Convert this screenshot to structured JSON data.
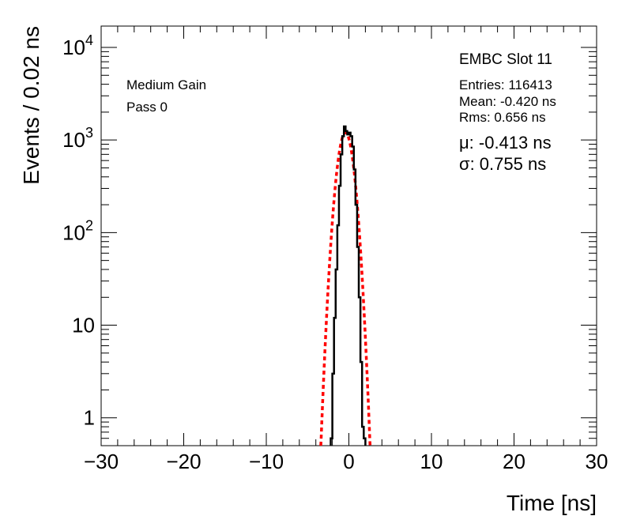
{
  "chart_data": {
    "type": "histogram",
    "xlabel": "Time [ns]",
    "ylabel": "Events / 0.02 ns",
    "xlim": [
      -30,
      30
    ],
    "ylim": [
      0.5,
      17000
    ],
    "y_scale": "log",
    "x_ticks": [
      {
        "value": -30,
        "label": "−30"
      },
      {
        "value": -20,
        "label": "−20"
      },
      {
        "value": -10,
        "label": "−10"
      },
      {
        "value": 0,
        "label": "0"
      },
      {
        "value": 10,
        "label": "10"
      },
      {
        "value": 20,
        "label": "20"
      },
      {
        "value": 30,
        "label": "30"
      }
    ],
    "y_ticks": [
      {
        "value": 1,
        "base": "1",
        "exp": ""
      },
      {
        "value": 10,
        "base": "10",
        "exp": ""
      },
      {
        "value": 100,
        "base": "10",
        "exp": "2"
      },
      {
        "value": 1000,
        "base": "10",
        "exp": "3"
      },
      {
        "value": 10000,
        "base": "10",
        "exp": "4"
      }
    ],
    "histogram": {
      "color": "#000000",
      "x": [
        -2.1,
        -1.9,
        -1.7,
        -1.5,
        -1.3,
        -1.1,
        -0.9,
        -0.7,
        -0.5,
        -0.3,
        -0.1,
        0.1,
        0.3,
        0.5,
        0.7,
        0.9,
        1.1,
        1.3,
        1.5,
        1.7,
        1.9
      ],
      "y": [
        0.6,
        3,
        12,
        40,
        120,
        320,
        700,
        1100,
        1400,
        1250,
        1150,
        1200,
        1100,
        850,
        480,
        200,
        70,
        20,
        4,
        0.8,
        0.6
      ]
    },
    "fit": {
      "type": "gaussian",
      "color": "#ff0000",
      "style": "dashed",
      "mu": -0.413,
      "sigma": 0.755,
      "amplitude": 1200,
      "x_range": [
        -3.4,
        2.6
      ]
    },
    "title": "EMBC Slot 11",
    "stats": {
      "entries": "Entries: 116413",
      "mean": "Mean: -0.420 ns",
      "rms": "Rms: 0.656 ns",
      "mu": "μ: -0.413 ns",
      "sigma": "σ: 0.755 ns"
    },
    "annotations": {
      "gain": "Medium Gain",
      "pass": "Pass 0"
    }
  }
}
